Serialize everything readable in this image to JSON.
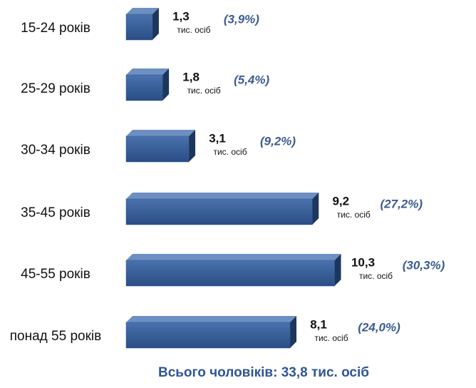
{
  "chart_data": {
    "type": "bar3d-horizontal",
    "categories": [
      "15-24 років",
      "25-29 років",
      "30-34 років",
      "35-45 років",
      "45-55 років",
      "понад 55 років"
    ],
    "values": [
      1.3,
      1.8,
      3.1,
      9.2,
      10.3,
      8.1
    ],
    "value_labels": [
      "1,3",
      "1,8",
      "3,1",
      "9,2",
      "10,3",
      "8,1"
    ],
    "unit_label": "тис. осіб",
    "share_labels": [
      "(3,9%)",
      "(5,4%)",
      "(9,2%)",
      "(27,2%)",
      "(30,3%)",
      "(24,0%)"
    ],
    "total_label": "Всього чоловіків: 33,8 тис. осіб",
    "color": "#2f5a94"
  }
}
